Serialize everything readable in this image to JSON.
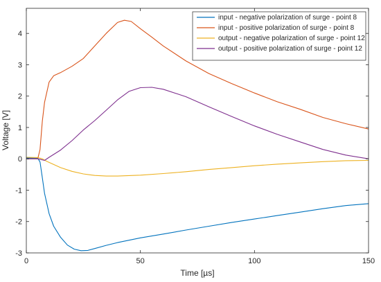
{
  "chart_data": {
    "type": "line",
    "title": "",
    "xlabel": "Time [µs]",
    "ylabel": "Voltage [V]",
    "xlim": [
      0,
      150
    ],
    "ylim": [
      -3,
      4.8
    ],
    "xticks": [
      0,
      50,
      100,
      150
    ],
    "yticks": [
      -3,
      -2,
      -1,
      0,
      1,
      2,
      3,
      4
    ],
    "grid": false,
    "legend_position": "top-right",
    "series": [
      {
        "name": "input - negative polarization of surge - point 8",
        "color": "#0072BD",
        "x": [
          0,
          5,
          6,
          7,
          8,
          10,
          12,
          15,
          18,
          21,
          24,
          27,
          30,
          35,
          40,
          50,
          60,
          70,
          80,
          90,
          100,
          110,
          120,
          130,
          140,
          150
        ],
        "y": [
          0.03,
          0.02,
          -0.1,
          -0.6,
          -1.1,
          -1.75,
          -2.15,
          -2.5,
          -2.75,
          -2.88,
          -2.93,
          -2.92,
          -2.86,
          -2.76,
          -2.67,
          -2.52,
          -2.4,
          -2.27,
          -2.15,
          -2.03,
          -1.92,
          -1.81,
          -1.7,
          -1.59,
          -1.49,
          -1.43
        ]
      },
      {
        "name": "input - positive polarization of surge - point 8",
        "color": "#D95319",
        "x": [
          0,
          5,
          6,
          7,
          8,
          10,
          12,
          15,
          20,
          25,
          30,
          35,
          40,
          43,
          46,
          50,
          55,
          60,
          70,
          80,
          90,
          100,
          110,
          120,
          130,
          140,
          150
        ],
        "y": [
          0.0,
          0.0,
          0.3,
          1.2,
          1.8,
          2.45,
          2.65,
          2.75,
          2.95,
          3.2,
          3.6,
          4.0,
          4.35,
          4.42,
          4.38,
          4.15,
          3.88,
          3.6,
          3.12,
          2.72,
          2.4,
          2.1,
          1.82,
          1.58,
          1.32,
          1.12,
          0.95
        ]
      },
      {
        "name": "output - negative polarization of surge - point 12",
        "color": "#EDB120",
        "x": [
          0,
          5,
          7,
          9,
          12,
          15,
          20,
          25,
          30,
          35,
          40,
          50,
          60,
          70,
          80,
          90,
          100,
          110,
          120,
          130,
          140,
          150
        ],
        "y": [
          0.05,
          0.04,
          0.0,
          -0.08,
          -0.18,
          -0.28,
          -0.4,
          -0.48,
          -0.53,
          -0.55,
          -0.55,
          -0.52,
          -0.47,
          -0.41,
          -0.34,
          -0.28,
          -0.22,
          -0.17,
          -0.13,
          -0.09,
          -0.06,
          -0.05
        ]
      },
      {
        "name": "output - positive polarization of surge - point 12",
        "color": "#7E2F8E",
        "x": [
          0,
          5,
          8,
          10,
          15,
          20,
          25,
          30,
          35,
          40,
          45,
          50,
          55,
          60,
          70,
          80,
          90,
          100,
          110,
          120,
          130,
          140,
          150
        ],
        "y": [
          0.0,
          0.0,
          -0.05,
          0.05,
          0.28,
          0.58,
          0.92,
          1.22,
          1.55,
          1.88,
          2.15,
          2.27,
          2.28,
          2.22,
          1.98,
          1.66,
          1.35,
          1.05,
          0.78,
          0.54,
          0.3,
          0.12,
          0.0
        ]
      }
    ]
  }
}
